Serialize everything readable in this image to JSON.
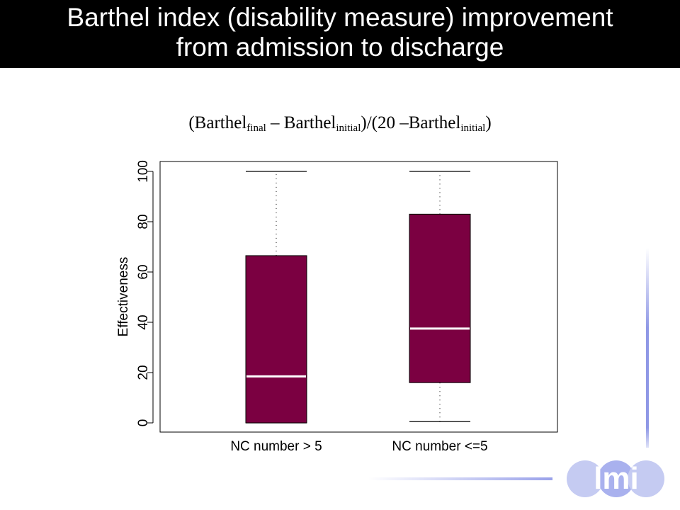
{
  "title": {
    "line1": "Barthel index (disability measure) improvement",
    "line2": "from admission to discharge"
  },
  "formula": {
    "open": "(Barthel",
    "sub_final": "final",
    "minus": " – Barthel",
    "sub_initial": "initial",
    "mid": ")/(20 –Barthel",
    "sub_initial2": "initial",
    "close": ")"
  },
  "logo": {
    "text": "lmi"
  },
  "colors": {
    "box_fill": "#7b0041",
    "median": "#ffffff",
    "accent_blue": "#8f98e6"
  },
  "chart_data": {
    "type": "boxplot",
    "ylabel": "Effectiveness",
    "xlabel": "",
    "ylim": [
      0,
      100
    ],
    "yticks": [
      0,
      20,
      40,
      60,
      80,
      100
    ],
    "grid": false,
    "categories": [
      "NC number > 5",
      "NC number <=5"
    ],
    "boxes": [
      {
        "category": "NC number > 5",
        "min": 0,
        "q1": 0,
        "median": 18.5,
        "q3": 66.5,
        "max": 100
      },
      {
        "category": "NC number <=5",
        "min": 0.5,
        "q1": 16,
        "median": 37.5,
        "q3": 83,
        "max": 100
      }
    ]
  }
}
